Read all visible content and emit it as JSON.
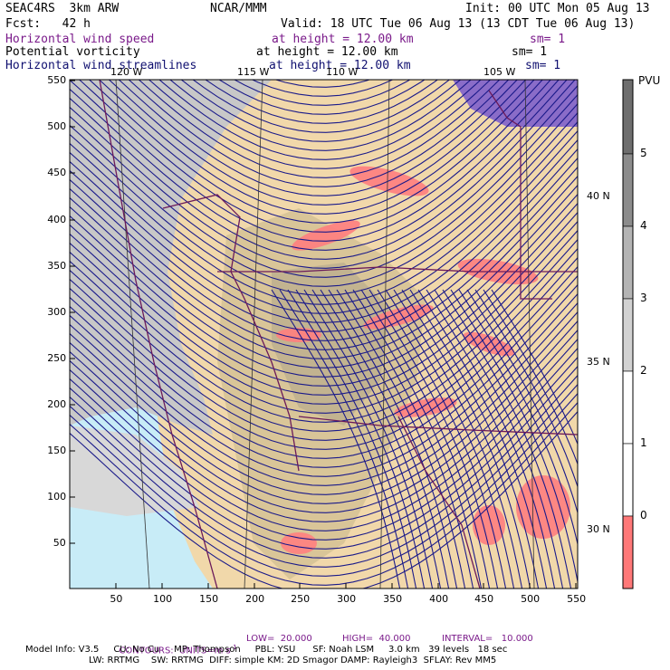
{
  "header": {
    "model": "SEAC4RS  3km ARW",
    "center": "NCAR/MMM",
    "init": "Init: 00 UTC Mon 05 Aug 13",
    "fcst": "Fcst:   42 h",
    "valid": "Valid: 18 UTC Tue 06 Aug 13 (13 CDT Tue 06 Aug 13)"
  },
  "fields": [
    {
      "name": "Horizontal wind speed",
      "level": "at height = 12.00 km",
      "sm": "sm= 1",
      "color": "#7a1a8a"
    },
    {
      "name": "Potential vorticity",
      "level": "at height = 12.00 km",
      "sm": "sm= 1",
      "color": "#000000"
    },
    {
      "name": "Horizontal wind streamlines",
      "level": "at height = 12.00 km",
      "sm": "sm= 1",
      "color": "#101070"
    }
  ],
  "map": {
    "x_ticks": [
      "50",
      "100",
      "150",
      "200",
      "250",
      "300",
      "350",
      "400",
      "450",
      "500",
      "550"
    ],
    "y_ticks": [
      "50",
      "100",
      "150",
      "200",
      "250",
      "300",
      "350",
      "400",
      "450",
      "500",
      "550"
    ],
    "lon_labels": [
      "120 W",
      "115 W",
      "110 W",
      "105 W"
    ],
    "lat_labels": [
      "40 N",
      "35 N",
      "30 N"
    ]
  },
  "colorbar": {
    "unit": "PVU",
    "labels": [
      "5",
      "4",
      "3",
      "2",
      "1",
      "0"
    ],
    "colors": [
      "#6e6e6e",
      "#8c8c8c",
      "#b4b4b4",
      "#d2d2d2",
      "#ffffff",
      "#ffffff",
      "#ff7878"
    ]
  },
  "footer": {
    "contours": "CONTOURS:  UNITS=m s",
    "sup": "-1",
    "low": "LOW=  20.000",
    "high": "HIGH=  40.000",
    "interval": "INTERVAL=   10.000",
    "line1": "Model Info: V3.5     CU: No Cu     MP: Thompson     PBL: YSU      SF: Noah LSM     3.0 km   39 levels   18 sec",
    "line2": "LW: RRTMG    SW: RRTMG  DIFF: simple KM: 2D Smagor DAMP: Rayleigh3  SFLAY: Rev MM5"
  }
}
